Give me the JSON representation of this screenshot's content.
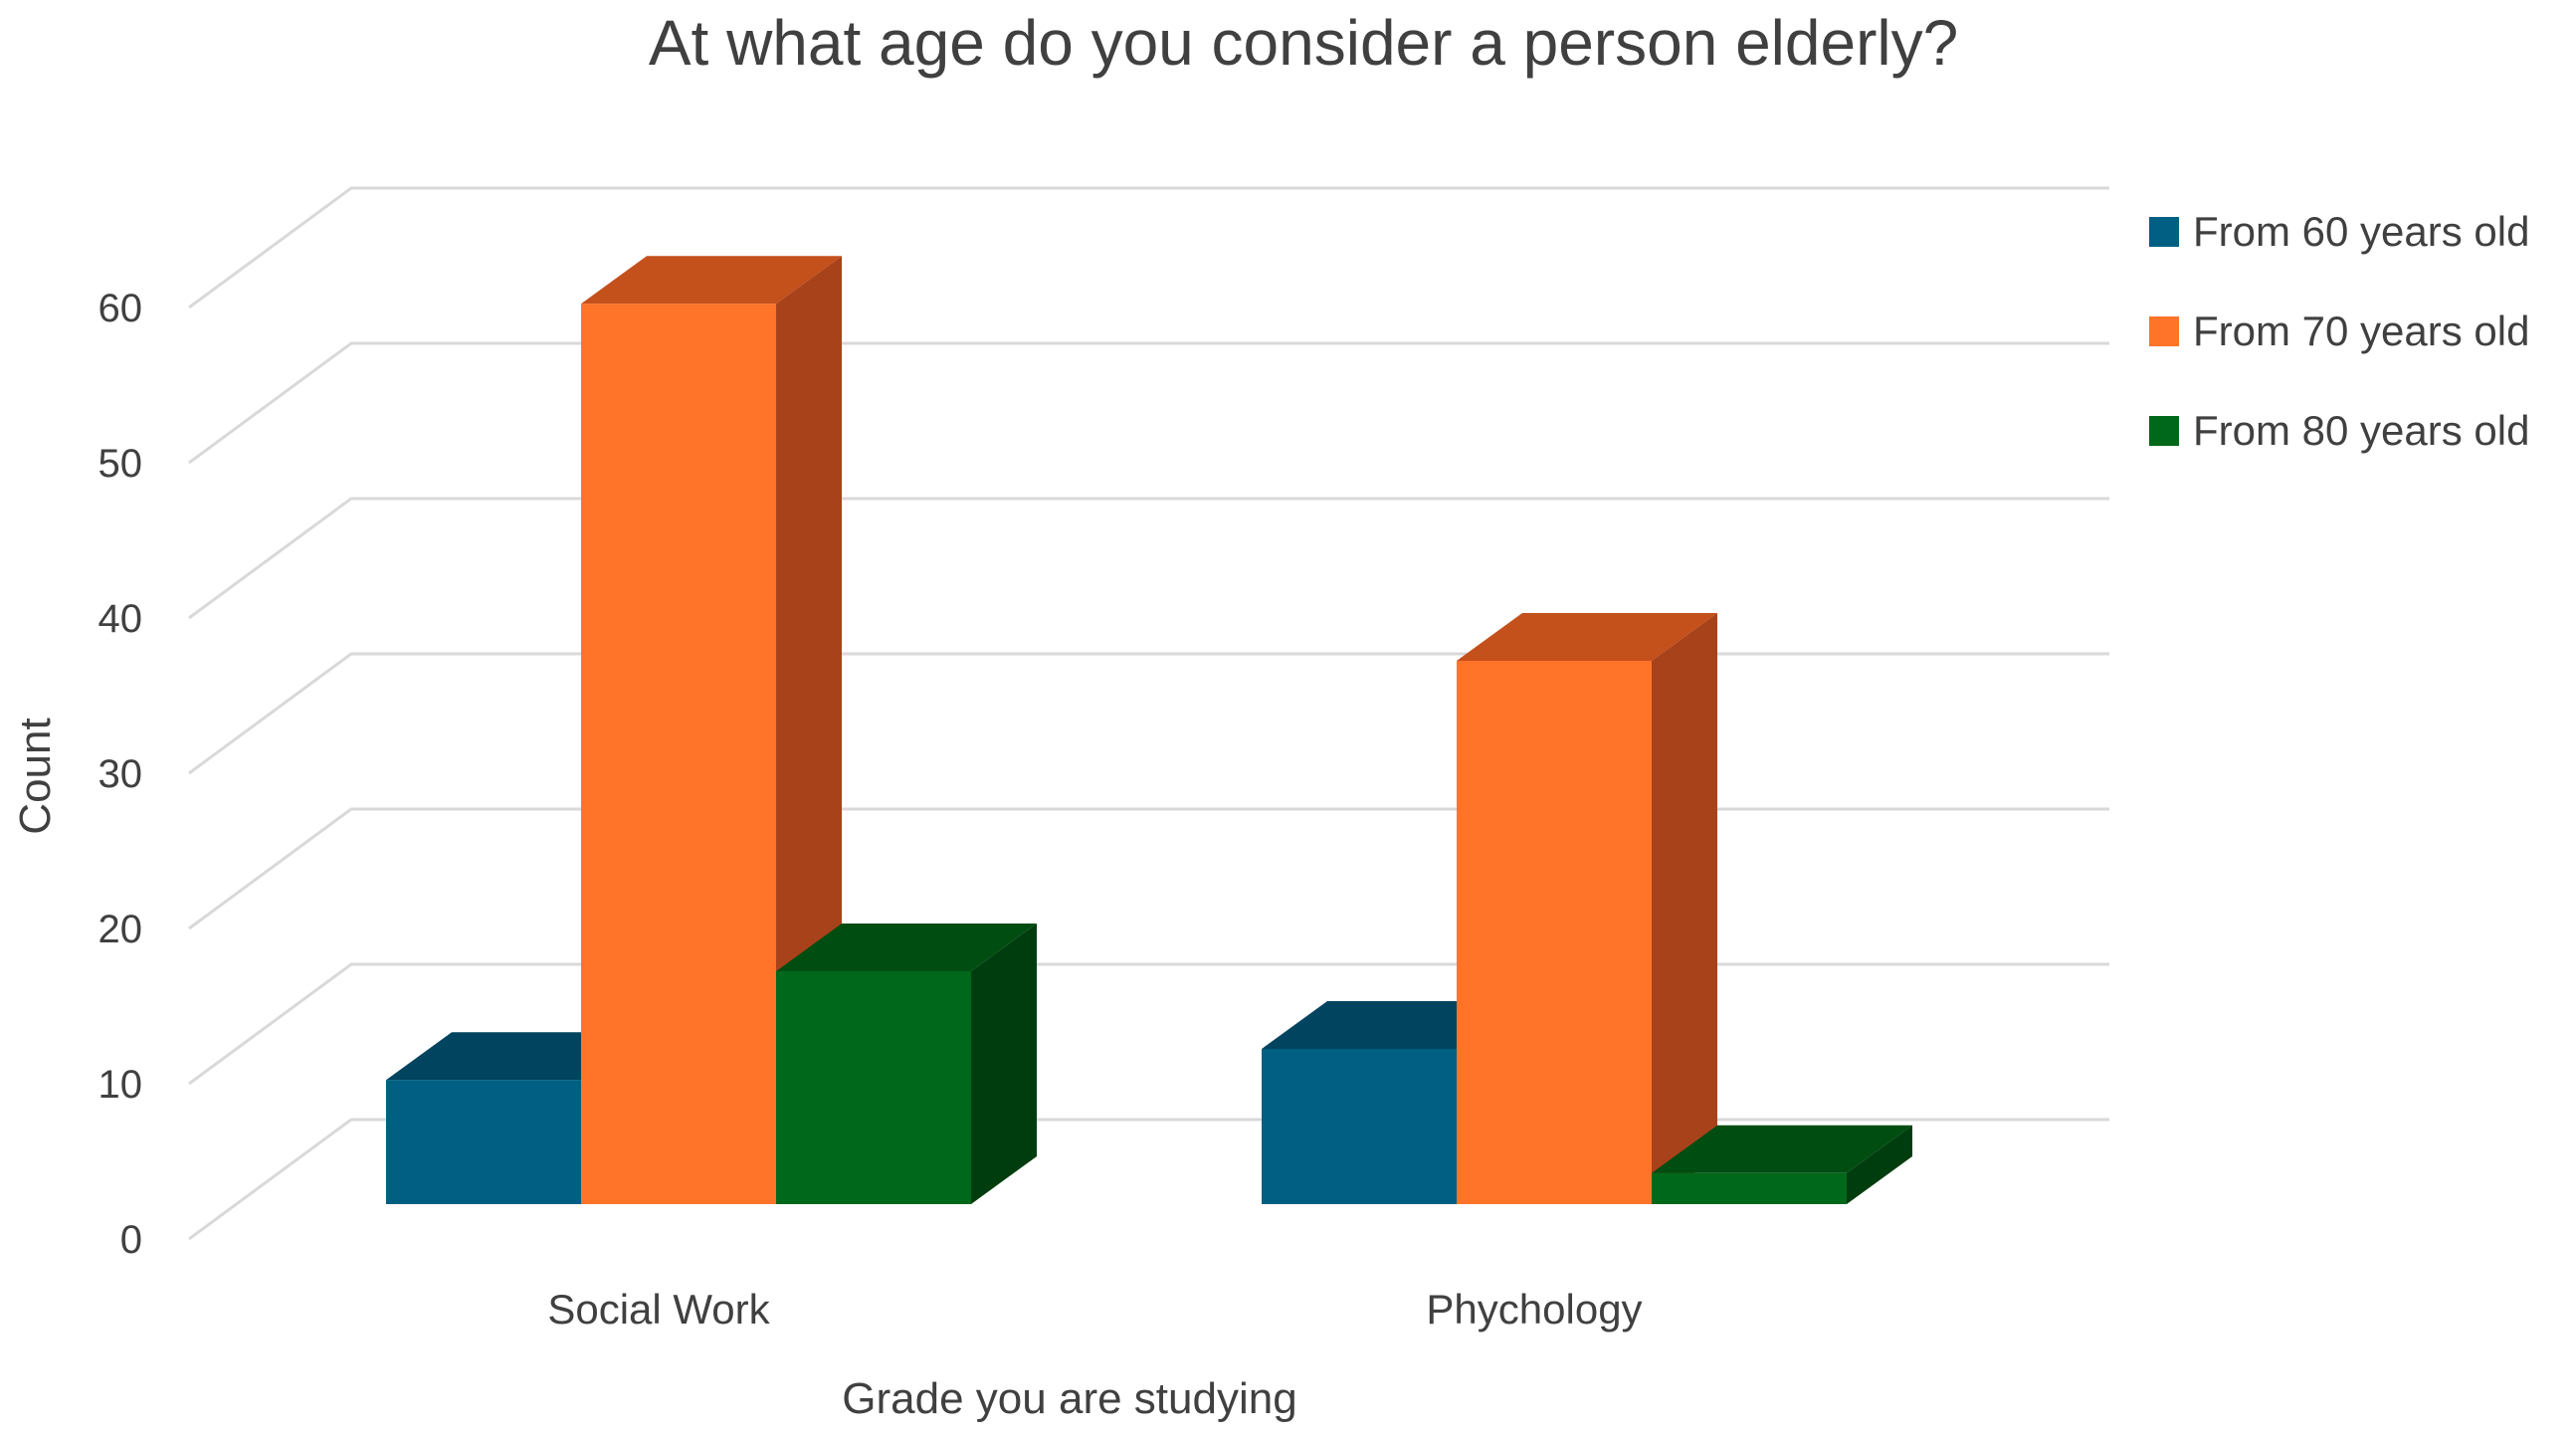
{
  "chart_data": {
    "type": "bar",
    "title": "At what age do you consider a person elderly?",
    "xlabel": "Grade you are studying",
    "ylabel": "Count",
    "categories": [
      "Social Work",
      "Phychology"
    ],
    "series": [
      {
        "name": "From 60 years old",
        "values": [
          8,
          10
        ],
        "color": "#005f83",
        "top": "#00445f",
        "side": "#003a52"
      },
      {
        "name": "From 70 years old",
        "values": [
          58,
          35
        ],
        "color": "#ff7429",
        "top": "#c4501c",
        "side": "#a8421a"
      },
      {
        "name": "From 80 years old",
        "values": [
          15,
          2
        ],
        "color": "#00681a",
        "top": "#004d12",
        "side": "#003d0e"
      }
    ],
    "yticks": [
      "0",
      "10",
      "20",
      "30",
      "40",
      "50",
      "60"
    ],
    "ylim": [
      0,
      65
    ],
    "grid": true,
    "legend": "right"
  }
}
